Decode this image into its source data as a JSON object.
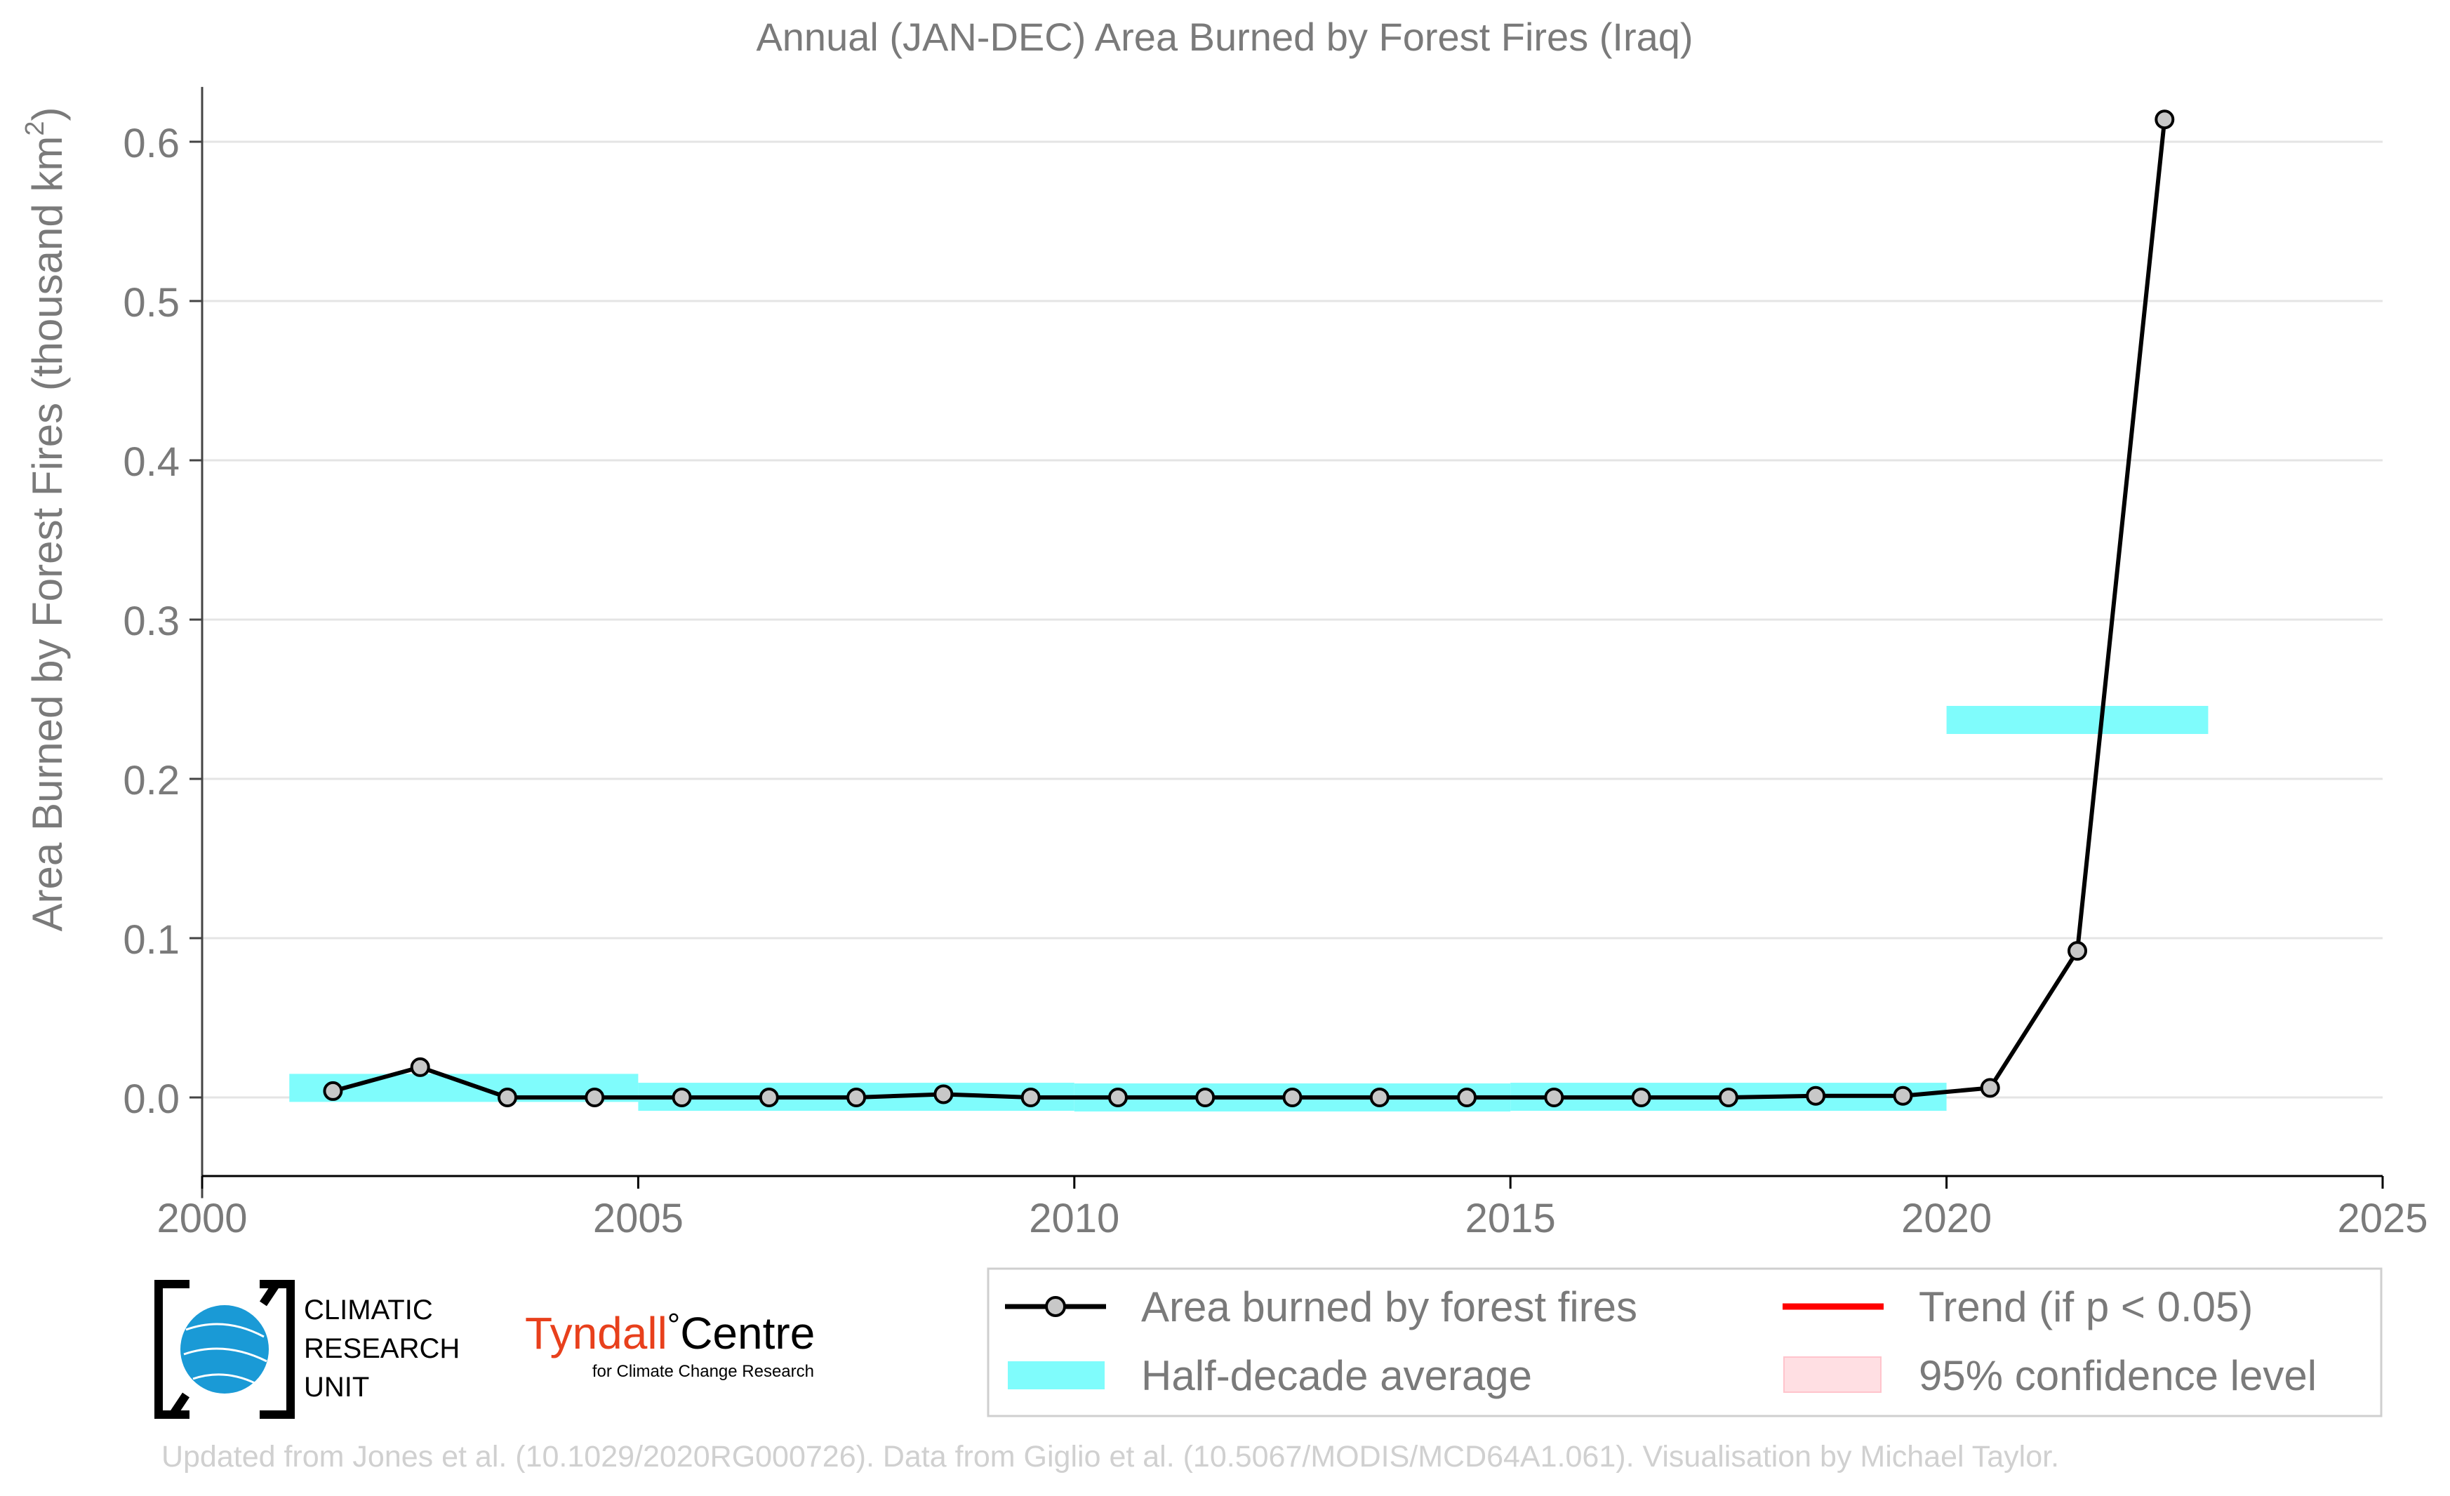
{
  "chart_data": {
    "type": "line",
    "title": "Annual (JAN-DEC) Area Burned by Forest Fires (Iraq)",
    "ylabel": "Area Burned by Forest Fires (thousand km",
    "ylabel_sup": "2",
    "ylabel_close": ")",
    "xlim": [
      2000,
      2025
    ],
    "ylim": [
      -0.05,
      0.63
    ],
    "grid": true,
    "x_ticks": [
      2000,
      2005,
      2010,
      2015,
      2020,
      2025
    ],
    "x_tick_labels": [
      "2000",
      "2005",
      "2010",
      "2015",
      "2020",
      "2025"
    ],
    "y_ticks": [
      0.0,
      0.1,
      0.2,
      0.3,
      0.4,
      0.5,
      0.6
    ],
    "y_tick_labels": [
      "0.0",
      "0.1",
      "0.2",
      "0.3",
      "0.4",
      "0.5",
      "0.6"
    ],
    "series": [
      {
        "name": "Area burned by forest fires",
        "color": "#000000",
        "marker_color": "#c8c8c8",
        "x": [
          2001.5,
          2002.5,
          2003.5,
          2004.5,
          2005.5,
          2006.5,
          2007.5,
          2008.5,
          2009.5,
          2010.5,
          2011.5,
          2012.5,
          2013.5,
          2014.5,
          2015.5,
          2016.5,
          2017.5,
          2018.5,
          2019.5,
          2020.5,
          2021.5,
          2022.5
        ],
        "values": [
          0.004,
          0.019,
          0.0,
          0.0,
          0.0,
          0.0,
          0.0,
          0.002,
          0.0,
          0.0,
          0.0,
          0.0,
          0.0,
          0.0,
          0.0,
          0.0,
          0.0,
          0.001,
          0.001,
          0.006,
          0.092,
          0.614
        ]
      }
    ],
    "half_decade_average": {
      "name": "Half-decade average",
      "color": "#7ffcfc",
      "segments": [
        {
          "x0": 2001,
          "x1": 2005,
          "y": 0.006
        },
        {
          "x0": 2005,
          "x1": 2010,
          "y": 0.0004
        },
        {
          "x0": 2010,
          "x1": 2015,
          "y": 0.0
        },
        {
          "x0": 2015,
          "x1": 2020,
          "y": 0.0004
        },
        {
          "x0": 2020,
          "x1": 2023,
          "y": 0.237
        }
      ]
    },
    "legend": {
      "placement": "bottom-right",
      "entries": [
        {
          "label": "Area burned by forest fires",
          "kind": "line-marker",
          "color": "#000000"
        },
        {
          "label": "Trend (if p < 0.05)",
          "kind": "line",
          "color": "#ff0000"
        },
        {
          "label": "Half-decade average",
          "kind": "band",
          "color": "#7ffcfc"
        },
        {
          "label": "95% confidence level",
          "kind": "band",
          "color": "#ffdfe3"
        }
      ]
    }
  },
  "logos": {
    "cru_line1": "CLIMATIC",
    "cru_line2": "RESEARCH",
    "cru_line3": "UNIT",
    "tyndall_name": "Tyndall",
    "tyndall_degree": "°",
    "tyndall_centre": "Centre",
    "tyndall_sub": "for Climate Change Research",
    "cru_color": "#1a9ad6",
    "tyndall_color": "#e8401c"
  },
  "footer": {
    "credit": "Updated from Jones et al. (10.1029/2020RG000726). Data from Giglio et al. (10.5067/MODIS/MCD64A1.061). Visualisation by Michael Taylor."
  }
}
